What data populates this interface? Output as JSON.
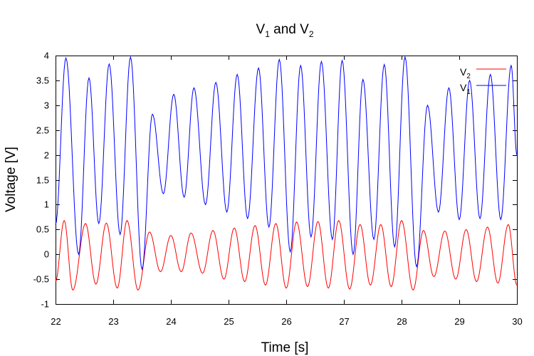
{
  "chart_data": {
    "type": "line",
    "title": {
      "main": "V",
      "sub1": "1",
      "mid": " and V",
      "sub2": "2"
    },
    "xlabel": "Time [s]",
    "ylabel": "Voltage [V]",
    "xlim": [
      22,
      30
    ],
    "ylim": [
      -1,
      4
    ],
    "x_ticks": [
      "22",
      "23",
      "24",
      "25",
      "26",
      "27",
      "28",
      "29",
      "30"
    ],
    "y_ticks": [
      "-1",
      "-0.5",
      "0",
      "0.5",
      "1",
      "1.5",
      "2",
      "2.5",
      "3",
      "3.5",
      "4"
    ],
    "grid": false,
    "legend_position": "top-right",
    "series": [
      {
        "name": "V2",
        "legend": {
          "main": "V",
          "sub": "2"
        },
        "color": "#ff0000",
        "points": [
          [
            22.0,
            -0.55
          ],
          [
            22.15,
            0.68
          ],
          [
            22.3,
            -0.72
          ],
          [
            22.52,
            0.62
          ],
          [
            22.7,
            -0.6
          ],
          [
            22.88,
            0.63
          ],
          [
            23.07,
            -0.68
          ],
          [
            23.24,
            0.68
          ],
          [
            23.43,
            -0.72
          ],
          [
            23.63,
            0.45
          ],
          [
            23.82,
            -0.35
          ],
          [
            24.0,
            0.38
          ],
          [
            24.18,
            -0.35
          ],
          [
            24.35,
            0.43
          ],
          [
            24.55,
            -0.38
          ],
          [
            24.73,
            0.48
          ],
          [
            24.92,
            -0.5
          ],
          [
            25.1,
            0.53
          ],
          [
            25.28,
            -0.55
          ],
          [
            25.46,
            0.58
          ],
          [
            25.64,
            -0.62
          ],
          [
            25.82,
            0.62
          ],
          [
            26.0,
            -0.68
          ],
          [
            26.18,
            0.65
          ],
          [
            26.37,
            -0.65
          ],
          [
            26.55,
            0.66
          ],
          [
            26.73,
            -0.68
          ],
          [
            26.91,
            0.68
          ],
          [
            27.1,
            -0.7
          ],
          [
            27.28,
            0.6
          ],
          [
            27.46,
            -0.62
          ],
          [
            27.64,
            0.6
          ],
          [
            27.82,
            -0.65
          ],
          [
            28.0,
            0.68
          ],
          [
            28.2,
            -0.72
          ],
          [
            28.38,
            0.48
          ],
          [
            28.56,
            -0.45
          ],
          [
            28.75,
            0.47
          ],
          [
            28.94,
            -0.5
          ],
          [
            29.12,
            0.5
          ],
          [
            29.3,
            -0.55
          ],
          [
            29.49,
            0.55
          ],
          [
            29.67,
            -0.58
          ],
          [
            29.85,
            0.6
          ],
          [
            30.0,
            -0.62
          ]
        ]
      },
      {
        "name": "V1",
        "legend": {
          "main": "V",
          "sub": "1"
        },
        "color": "#0000ff",
        "points": [
          [
            22.0,
            0.6
          ],
          [
            22.18,
            3.95
          ],
          [
            22.4,
            0.0
          ],
          [
            22.58,
            3.55
          ],
          [
            22.75,
            0.62
          ],
          [
            22.93,
            3.83
          ],
          [
            23.12,
            0.4
          ],
          [
            23.3,
            3.97
          ],
          [
            23.5,
            -0.3
          ],
          [
            23.68,
            2.82
          ],
          [
            23.87,
            1.22
          ],
          [
            24.05,
            3.22
          ],
          [
            24.23,
            1.15
          ],
          [
            24.4,
            3.35
          ],
          [
            24.6,
            1.0
          ],
          [
            24.78,
            3.46
          ],
          [
            24.97,
            0.85
          ],
          [
            25.15,
            3.62
          ],
          [
            25.33,
            0.72
          ],
          [
            25.52,
            3.75
          ],
          [
            25.7,
            0.55
          ],
          [
            25.88,
            3.92
          ],
          [
            26.07,
            0.05
          ],
          [
            26.25,
            3.8
          ],
          [
            26.43,
            0.35
          ],
          [
            26.61,
            3.88
          ],
          [
            26.8,
            0.3
          ],
          [
            26.97,
            3.9
          ],
          [
            27.16,
            0.0
          ],
          [
            27.33,
            3.52
          ],
          [
            27.52,
            0.3
          ],
          [
            27.7,
            3.82
          ],
          [
            27.88,
            0.15
          ],
          [
            28.06,
            3.97
          ],
          [
            28.26,
            -0.25
          ],
          [
            28.45,
            3.0
          ],
          [
            28.64,
            0.85
          ],
          [
            28.82,
            3.35
          ],
          [
            29.0,
            0.7
          ],
          [
            29.18,
            3.5
          ],
          [
            29.36,
            0.72
          ],
          [
            29.54,
            3.62
          ],
          [
            29.72,
            0.7
          ],
          [
            29.9,
            3.8
          ],
          [
            30.0,
            2.0
          ]
        ]
      }
    ]
  }
}
